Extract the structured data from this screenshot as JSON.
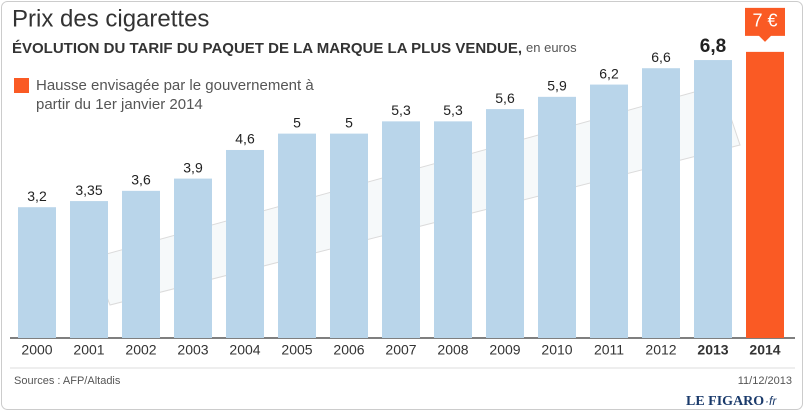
{
  "chart_data": {
    "type": "bar",
    "title": "Prix des cigarettes",
    "subtitle": "ÉVOLUTION DU TARIF DU PAQUET DE LA MARQUE LA PLUS VENDUE,",
    "unit": "en euros",
    "categories": [
      "2000",
      "2001",
      "2002",
      "2003",
      "2004",
      "2005",
      "2006",
      "2007",
      "2008",
      "2009",
      "2010",
      "2011",
      "2012",
      "2013",
      "2014"
    ],
    "series": [
      {
        "color": "#b9d5ea",
        "values": [
          3.2,
          3.35,
          3.6,
          3.9,
          4.6,
          5,
          5,
          5.3,
          5.3,
          5.6,
          5.9,
          6.2,
          6.6,
          6.8,
          null
        ],
        "value_labels": [
          "3,2",
          "3,35",
          "3,6",
          "3,9",
          "4,6",
          "5",
          "5",
          "5,3",
          "5,3",
          "5,6",
          "5,9",
          "6,2",
          "6,6",
          "6,8",
          null
        ]
      },
      {
        "name": "Hausse envisagée par le gouvernement à partir du 1er janvier 2014",
        "color": "#fa5a24",
        "values": [
          null,
          null,
          null,
          null,
          null,
          null,
          null,
          null,
          null,
          null,
          null,
          null,
          null,
          null,
          7
        ],
        "value_labels": [
          null,
          null,
          null,
          null,
          null,
          null,
          null,
          null,
          null,
          null,
          null,
          null,
          null,
          null,
          "7 €"
        ]
      }
    ],
    "ylim": [
      0,
      8
    ],
    "source": "Sources : AFP/Altadis",
    "date": "11/12/2013",
    "brand": "LE FIGARO",
    "brand_suffix": "·fr"
  }
}
